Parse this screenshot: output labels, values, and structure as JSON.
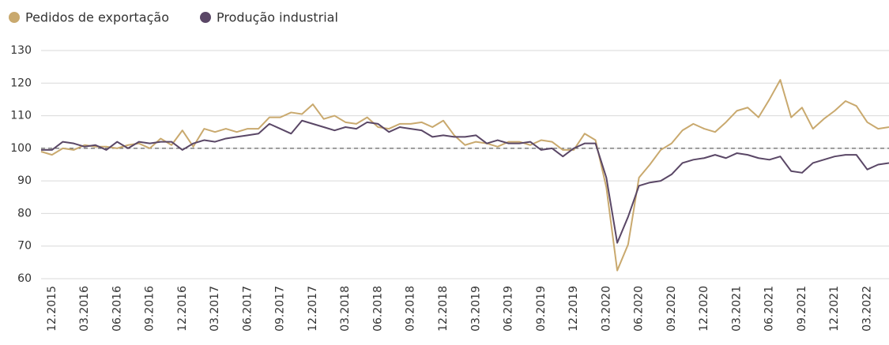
{
  "chart_data": {
    "type": "line",
    "categories": [
      null,
      "12.2015",
      null,
      null,
      "03.2016",
      null,
      null,
      "06.2016",
      null,
      null,
      "09.2016",
      null,
      null,
      "12.2016",
      null,
      null,
      "03.2017",
      null,
      null,
      "06.2017",
      null,
      null,
      "09.2017",
      null,
      null,
      "12.2017",
      null,
      null,
      "03.2018",
      null,
      null,
      "06.2018",
      null,
      null,
      "09.2018",
      null,
      null,
      "12.2018",
      null,
      null,
      "03.2019",
      null,
      null,
      "06.2019",
      null,
      null,
      "09.2019",
      null,
      null,
      "12.2019",
      null,
      null,
      "03.2020",
      null,
      null,
      "06.2020",
      null,
      null,
      "09.2020",
      null,
      null,
      "12.2020",
      null,
      null,
      "03.2021",
      null,
      null,
      "06.2021",
      null,
      null,
      "09.2021",
      null,
      null,
      "12.2021",
      null,
      null,
      "03.2022",
      null,
      null
    ],
    "series": [
      {
        "name": "Pedidos de exportação",
        "color": "#c9a96e",
        "values": [
          99,
          98,
          100,
          99.5,
          101,
          100.5,
          100.5,
          100,
          101,
          101.5,
          100,
          103,
          101,
          105.5,
          100.5,
          106,
          105,
          106,
          105,
          106,
          106,
          109.5,
          109.5,
          111,
          110.5,
          113.5,
          109,
          110,
          108,
          107.5,
          109.5,
          106.5,
          106,
          107.5,
          107.5,
          108,
          106.5,
          108.5,
          104,
          101,
          102,
          101.5,
          100.5,
          102,
          102,
          101,
          102.5,
          102,
          99.5,
          99.5,
          104.5,
          102.5,
          88,
          62.5,
          70.5,
          91,
          95,
          99.5,
          101.5,
          105.5,
          107.5,
          106,
          105,
          108,
          111.5,
          112.5,
          109.5,
          115,
          121,
          109.5,
          112.5,
          106,
          109,
          111.5,
          114.5,
          113,
          108,
          106,
          106.5
        ]
      },
      {
        "name": "Produção industrial",
        "color": "#5a4766",
        "values": [
          99.5,
          99.5,
          102,
          101.5,
          100.5,
          101,
          99.5,
          102,
          100,
          102,
          101.5,
          102,
          102,
          99.5,
          101.5,
          102.5,
          102,
          103,
          103.5,
          104,
          104.5,
          107.5,
          106,
          104.5,
          108.5,
          107.5,
          106.5,
          105.5,
          106.5,
          106,
          108,
          107.5,
          105,
          106.5,
          106,
          105.5,
          103.5,
          104,
          103.5,
          103.5,
          104,
          101.5,
          102.5,
          101.5,
          101.5,
          102,
          99.5,
          100,
          97.5,
          100,
          101.5,
          101.5,
          91,
          71,
          79,
          88.5,
          89.5,
          90,
          92,
          95.5,
          96.5,
          97,
          98,
          97,
          98.5,
          98,
          97,
          96.5,
          97.5,
          93,
          92.5,
          95.5,
          96.5,
          97.5,
          98,
          98,
          93.5,
          95,
          95.5
        ]
      }
    ],
    "ylim": [
      60,
      130
    ],
    "yticks": [
      60,
      70,
      80,
      90,
      100,
      110,
      120,
      130
    ],
    "reference_line": 100,
    "grid": true,
    "legend": "top-left"
  }
}
